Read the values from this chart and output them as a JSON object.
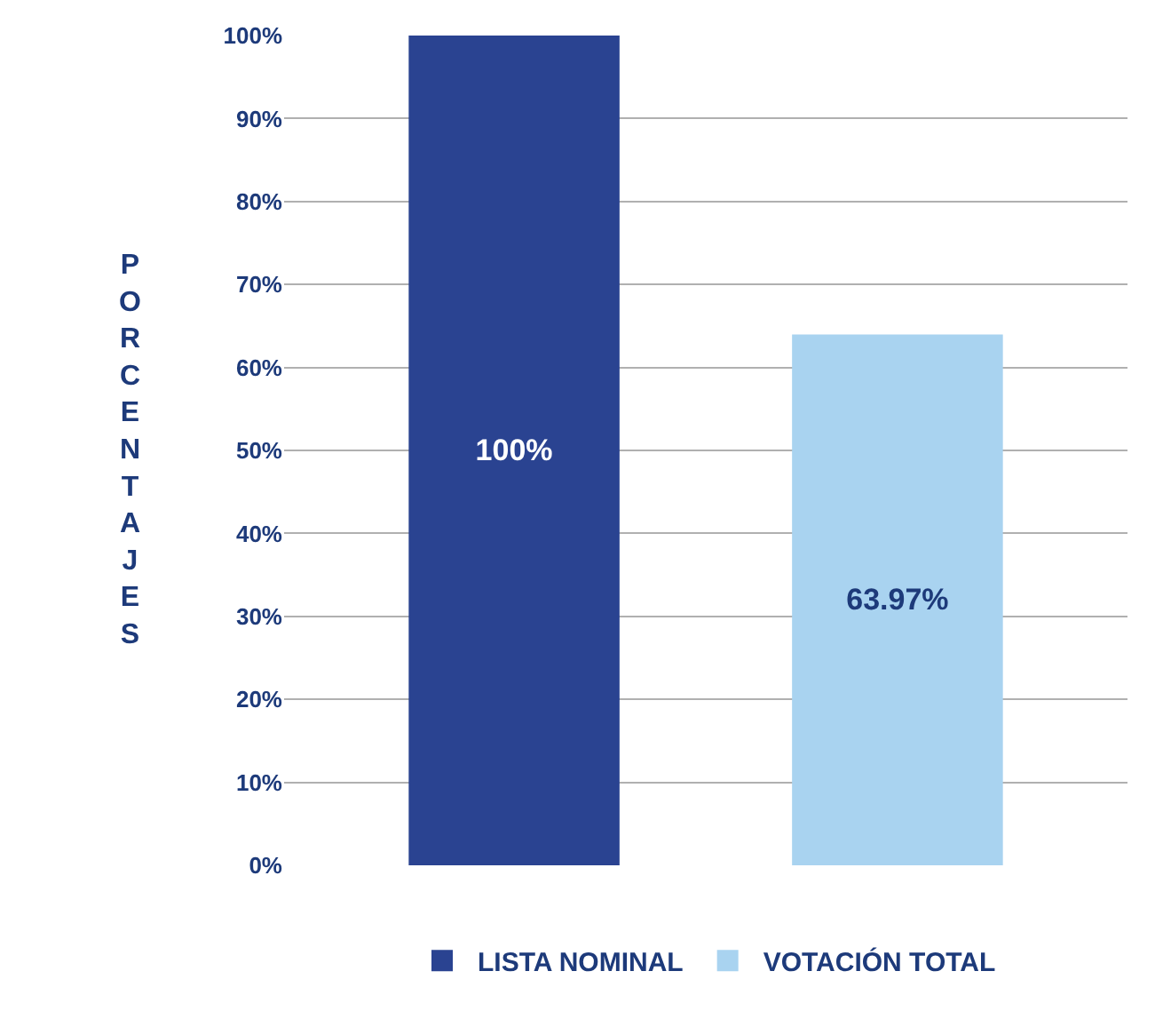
{
  "chart_data": {
    "type": "bar",
    "ylabel": "PORCENTAJES",
    "categories": [
      null,
      null
    ],
    "series": [
      {
        "name": "LISTA NOMINAL",
        "color": "#2a4391",
        "values": [
          100,
          null
        ]
      },
      {
        "name": "VOTACIÓN TOTAL",
        "color": "#a9d3f0",
        "values": [
          null,
          63.97
        ]
      }
    ],
    "value_labels": [
      [
        "100%",
        null
      ],
      [
        null,
        "63.97%"
      ]
    ],
    "ylim": [
      0,
      100
    ],
    "yticks": [
      {
        "value": 0,
        "label": "0%"
      },
      {
        "value": 10,
        "label": "10%"
      },
      {
        "value": 20,
        "label": "20%"
      },
      {
        "value": 30,
        "label": "30%"
      },
      {
        "value": 40,
        "label": "40%"
      },
      {
        "value": 50,
        "label": "50%"
      },
      {
        "value": 60,
        "label": "60%"
      },
      {
        "value": 70,
        "label": "70%"
      },
      {
        "value": 80,
        "label": "80%"
      },
      {
        "value": 90,
        "label": "90%"
      },
      {
        "value": 100,
        "label": "100%"
      }
    ],
    "grid": "y",
    "legend": "bottom"
  }
}
